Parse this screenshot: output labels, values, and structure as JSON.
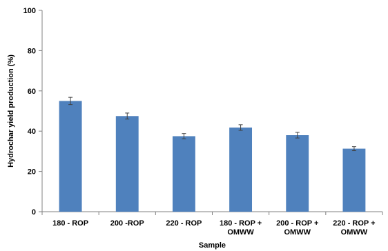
{
  "chart_data": {
    "type": "bar",
    "categories": [
      [
        "180 - ROP"
      ],
      [
        "200 -ROP"
      ],
      [
        "220 - ROP"
      ],
      [
        "180 - ROP +",
        "OMWW"
      ],
      [
        "200 - ROP +",
        "OMWW"
      ],
      [
        "220 - ROP +",
        "OMWW"
      ]
    ],
    "values": [
      55,
      47.5,
      37.5,
      41.8,
      38,
      31.3
    ],
    "errors": [
      1.8,
      1.5,
      1.3,
      1.4,
      1.4,
      1.0
    ],
    "title": "",
    "xlabel": "Sample",
    "ylabel": "Hydrochar yield production (%)",
    "ylim": [
      0,
      100
    ],
    "yticks": [
      "0",
      "20",
      "40",
      "60",
      "80",
      "100"
    ],
    "grid": false,
    "legend": "none",
    "bar_color": "#4f81bd",
    "error_color": "#404040"
  }
}
